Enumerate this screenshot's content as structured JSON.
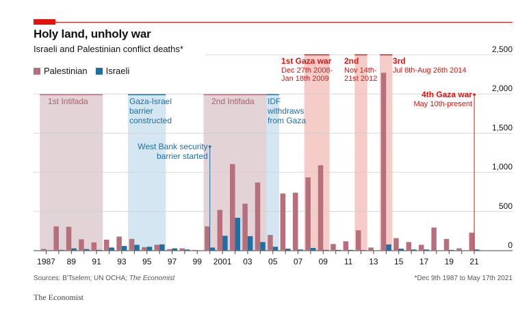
{
  "header": {
    "title": "Holy land, unholy war",
    "subtitle": "Israeli and Palestinian conflict deaths*"
  },
  "legend": {
    "palestinian": "Palestinian",
    "israeli": "Israeli"
  },
  "footer": {
    "source_prefix": "Sources: B'Tselem; UN OCHA; ",
    "source_italic": "The Economist",
    "footnote": "*Dec 9th 1987 to May 17th 2021",
    "brand": "The Economist"
  },
  "colors": {
    "palestinian": "#b86f7c",
    "israeli": "#1f6fa3",
    "red_accent": "#e3120b",
    "blue_label": "#1f6fa3",
    "gray_shade": "#e2d3d6",
    "blue_shade": "#d3e6f1",
    "red_shade": "#f6ccc8"
  },
  "chart_data": {
    "type": "bar",
    "years": [
      1987,
      1988,
      1989,
      1990,
      1991,
      1992,
      1993,
      1994,
      1995,
      1996,
      1997,
      1998,
      1999,
      2000,
      2001,
      2002,
      2003,
      2004,
      2005,
      2006,
      2007,
      2008,
      2009,
      2010,
      2011,
      2012,
      2013,
      2014,
      2015,
      2016,
      2017,
      2018,
      2019,
      2020,
      2021
    ],
    "series": [
      {
        "name": "Palestinian",
        "values": [
          22,
          310,
          305,
          145,
          105,
          140,
          180,
          150,
          45,
          75,
          20,
          30,
          10,
          310,
          520,
          1105,
          600,
          870,
          200,
          730,
          740,
          935,
          1090,
          85,
          120,
          260,
          40,
          2270,
          160,
          110,
          75,
          295,
          150,
          30,
          230
        ]
      },
      {
        "name": "Israeli",
        "values": [
          0,
          10,
          30,
          20,
          10,
          40,
          60,
          75,
          50,
          80,
          30,
          15,
          5,
          40,
          190,
          420,
          185,
          110,
          50,
          25,
          15,
          35,
          10,
          10,
          10,
          8,
          5,
          80,
          25,
          15,
          15,
          5,
          10,
          5,
          15
        ]
      }
    ],
    "x_tick_labels": [
      "1987",
      "89",
      "91",
      "93",
      "95",
      "97",
      "99",
      "2001",
      "03",
      "05",
      "07",
      "09",
      "11",
      "13",
      "15",
      "17",
      "19",
      "21"
    ],
    "y_ticks": [
      0,
      500,
      1000,
      1500,
      2000,
      2500
    ],
    "ylim": [
      0,
      2500
    ],
    "grid": true,
    "legend_position": "top-left",
    "periods": [
      {
        "label": "1st Intifada",
        "start": 1987,
        "end": 1991,
        "style": "gray"
      },
      {
        "label": "Gaza-Israel barrier constructed",
        "start": 1994,
        "end": 1996,
        "style": "blue"
      },
      {
        "label": "2nd Intifada",
        "start": 2000,
        "end": 2004,
        "style": "gray"
      },
      {
        "label": "IDF withdraws from Gaza",
        "start": 2005,
        "end": 2005,
        "style": "blue"
      },
      {
        "label": "1st Gaza war",
        "detail": "Dec 27th 2008-Jan 18th 2009",
        "start": 2008,
        "end": 2009,
        "style": "red"
      },
      {
        "label": "2nd",
        "detail": "Nov 14th-21st 2012",
        "start": 2012,
        "end": 2012,
        "style": "red"
      },
      {
        "label": "3rd",
        "detail": "Jul 8th-Aug 26th 2014",
        "start": 2014,
        "end": 2014,
        "style": "red"
      }
    ],
    "annotations": [
      {
        "label": "West Bank security barrier started",
        "year": 2000
      },
      {
        "label": "4th Gaza war",
        "detail": "May 10th-present",
        "year": 2021
      }
    ]
  }
}
